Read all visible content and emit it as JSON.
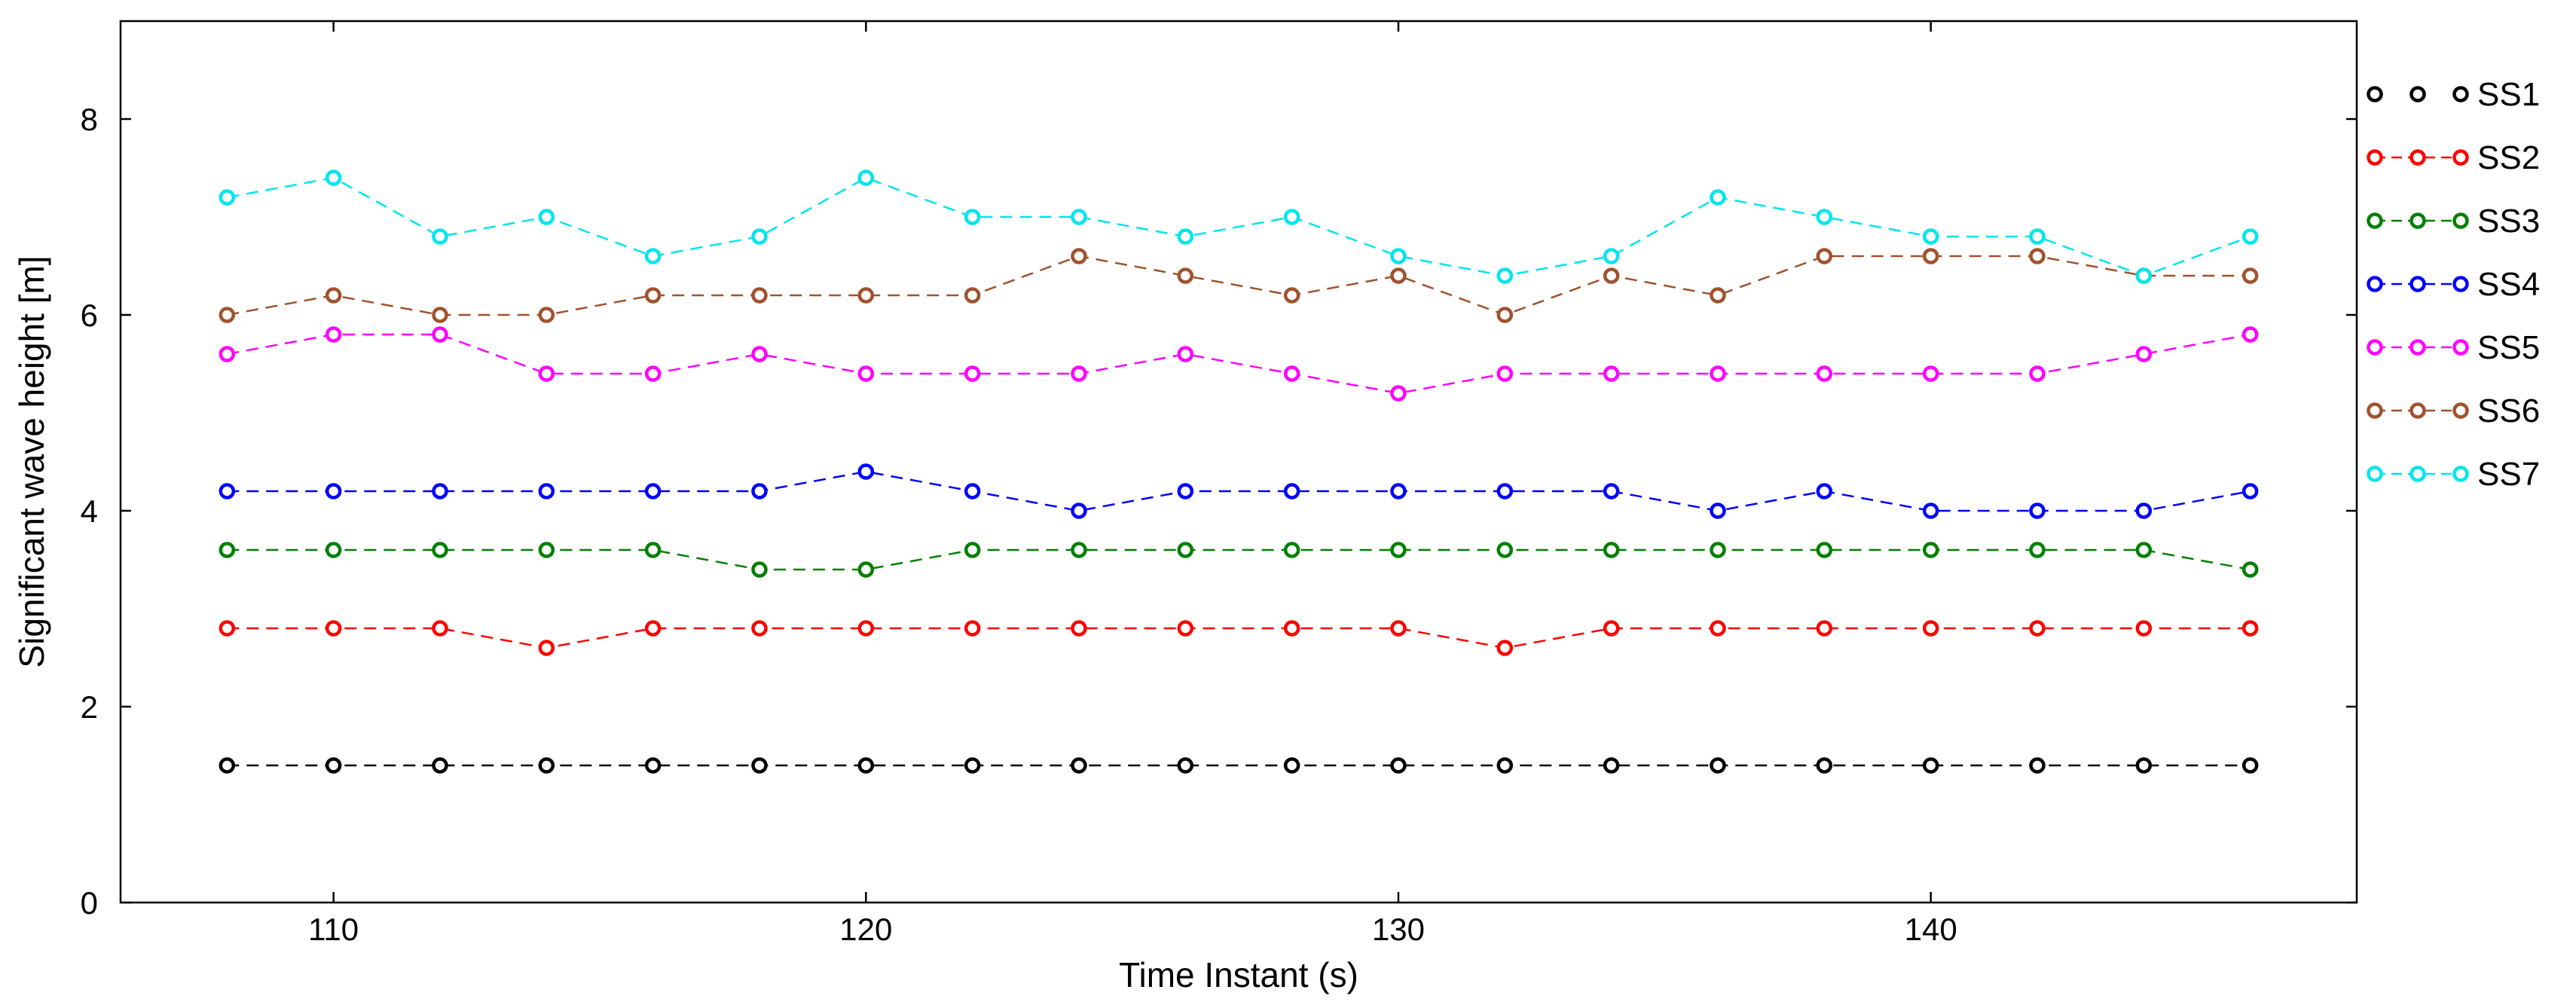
{
  "chart_data": {
    "type": "line",
    "title": "",
    "xlabel": "Time Instant (s)",
    "ylabel": "Significant wave height [m]",
    "xlim": [
      106,
      148
    ],
    "ylim": [
      0,
      9
    ],
    "xticks": [
      110,
      120,
      130,
      140
    ],
    "yticks": [
      0,
      2,
      4,
      6,
      8
    ],
    "grid": false,
    "legend_position": "right",
    "x": [
      108,
      110,
      112,
      114,
      116,
      118,
      120,
      122,
      124,
      126,
      128,
      130,
      132,
      134,
      136,
      138,
      140,
      142,
      144,
      146
    ],
    "series": [
      {
        "name": "SS1",
        "color": "#000000",
        "values": [
          1.4,
          1.4,
          1.4,
          1.4,
          1.4,
          1.4,
          1.4,
          1.4,
          1.4,
          1.4,
          1.4,
          1.4,
          1.4,
          1.4,
          1.4,
          1.4,
          1.4,
          1.4,
          1.4,
          1.4
        ]
      },
      {
        "name": "SS2",
        "color": "#ff0000",
        "values": [
          2.8,
          2.8,
          2.8,
          2.6,
          2.8,
          2.8,
          2.8,
          2.8,
          2.8,
          2.8,
          2.8,
          2.8,
          2.6,
          2.8,
          2.8,
          2.8,
          2.8,
          2.8,
          2.8,
          2.8
        ]
      },
      {
        "name": "SS3",
        "color": "#008000",
        "values": [
          3.6,
          3.6,
          3.6,
          3.6,
          3.6,
          3.4,
          3.4,
          3.6,
          3.6,
          3.6,
          3.6,
          3.6,
          3.6,
          3.6,
          3.6,
          3.6,
          3.6,
          3.6,
          3.6,
          3.4
        ]
      },
      {
        "name": "SS4",
        "color": "#0000ff",
        "values": [
          4.2,
          4.2,
          4.2,
          4.2,
          4.2,
          4.2,
          4.4,
          4.2,
          4.0,
          4.2,
          4.2,
          4.2,
          4.2,
          4.2,
          4.0,
          4.2,
          4.0,
          4.0,
          4.0,
          4.2
        ]
      },
      {
        "name": "SS5",
        "color": "#ff00ff",
        "values": [
          5.6,
          5.8,
          5.8,
          5.4,
          5.4,
          5.6,
          5.4,
          5.4,
          5.4,
          5.6,
          5.4,
          5.2,
          5.4,
          5.4,
          5.4,
          5.4,
          5.4,
          5.4,
          5.6,
          5.8
        ]
      },
      {
        "name": "SS6",
        "color": "#a0522d",
        "values": [
          6.0,
          6.2,
          6.0,
          6.0,
          6.2,
          6.2,
          6.2,
          6.2,
          6.6,
          6.4,
          6.2,
          6.4,
          6.0,
          6.4,
          6.2,
          6.6,
          6.6,
          6.6,
          6.4,
          6.4
        ]
      },
      {
        "name": "SS7",
        "color": "#00e5ee",
        "values": [
          7.2,
          7.4,
          6.8,
          7.0,
          6.6,
          6.8,
          7.4,
          7.0,
          7.0,
          6.8,
          7.0,
          6.6,
          6.4,
          6.6,
          7.2,
          7.0,
          6.8,
          6.8,
          6.4,
          6.8
        ]
      }
    ]
  }
}
